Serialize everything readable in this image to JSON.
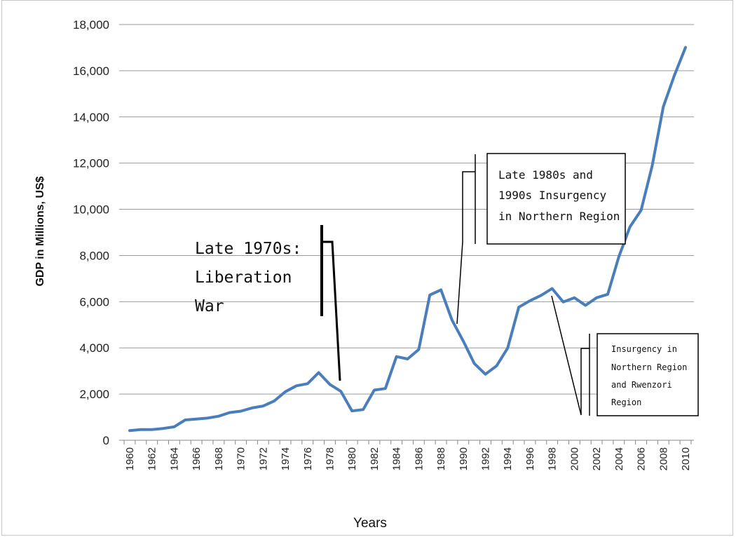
{
  "chart_data": {
    "type": "line",
    "title": "",
    "xlabel": "Years",
    "ylabel": "GDP in Millions,  US$",
    "ylim": [
      0,
      18000
    ],
    "xlim": [
      1960,
      2010
    ],
    "grid": "horizontal",
    "legend": "none",
    "line_color": "#4a7ebb",
    "y_ticks": [
      "0",
      "2,000",
      "4,000",
      "6,000",
      "8,000",
      "10,000",
      "12,000",
      "14,000",
      "16,000",
      "18,000"
    ],
    "x_ticks": [
      "1960",
      "1962",
      "1964",
      "1966",
      "1968",
      "1970",
      "1972",
      "1974",
      "1976",
      "1978",
      "1980",
      "1982",
      "1984",
      "1986",
      "1988",
      "1990",
      "1992",
      "1994",
      "1996",
      "1998",
      "2000",
      "2002",
      "2004",
      "2006",
      "2008",
      "2010"
    ],
    "series": [
      {
        "x": [
          1960,
          1961,
          1962,
          1963,
          1964,
          1965,
          1966,
          1967,
          1968,
          1969,
          1970,
          1971,
          1972,
          1973,
          1974,
          1975,
          1976,
          1977,
          1978,
          1979,
          1980,
          1981,
          1982,
          1983,
          1984,
          1985,
          1986,
          1987,
          1988,
          1989,
          1990,
          1991,
          1992,
          1993,
          1994,
          1995,
          1996,
          1997,
          1998,
          1999,
          2000,
          2001,
          2002,
          2003,
          2004,
          2005,
          2006,
          2007,
          2008,
          2009,
          2010
        ],
        "values": [
          420,
          460,
          460,
          510,
          580,
          880,
          920,
          960,
          1040,
          1200,
          1260,
          1400,
          1480,
          1700,
          2100,
          2360,
          2450,
          2930,
          2420,
          2120,
          1270,
          1330,
          2170,
          2240,
          3620,
          3520,
          3930,
          6290,
          6510,
          5200,
          4300,
          3320,
          2860,
          3220,
          3990,
          5760,
          6040,
          6270,
          6570,
          5990,
          6170,
          5840,
          6170,
          6320,
          7940,
          9240,
          9960,
          11880,
          14440,
          15800,
          17010
        ]
      }
    ],
    "annotations": [
      {
        "lines": [
          "Late 1970s:",
          "Liberation",
          "War"
        ]
      },
      {
        "lines": [
          "Late 1980s and",
          "1990s Insurgency",
          "in Northern Region"
        ]
      },
      {
        "lines": [
          "Insurgency in",
          "Northern Region",
          "and Rwenzori",
          "Region"
        ]
      }
    ]
  }
}
